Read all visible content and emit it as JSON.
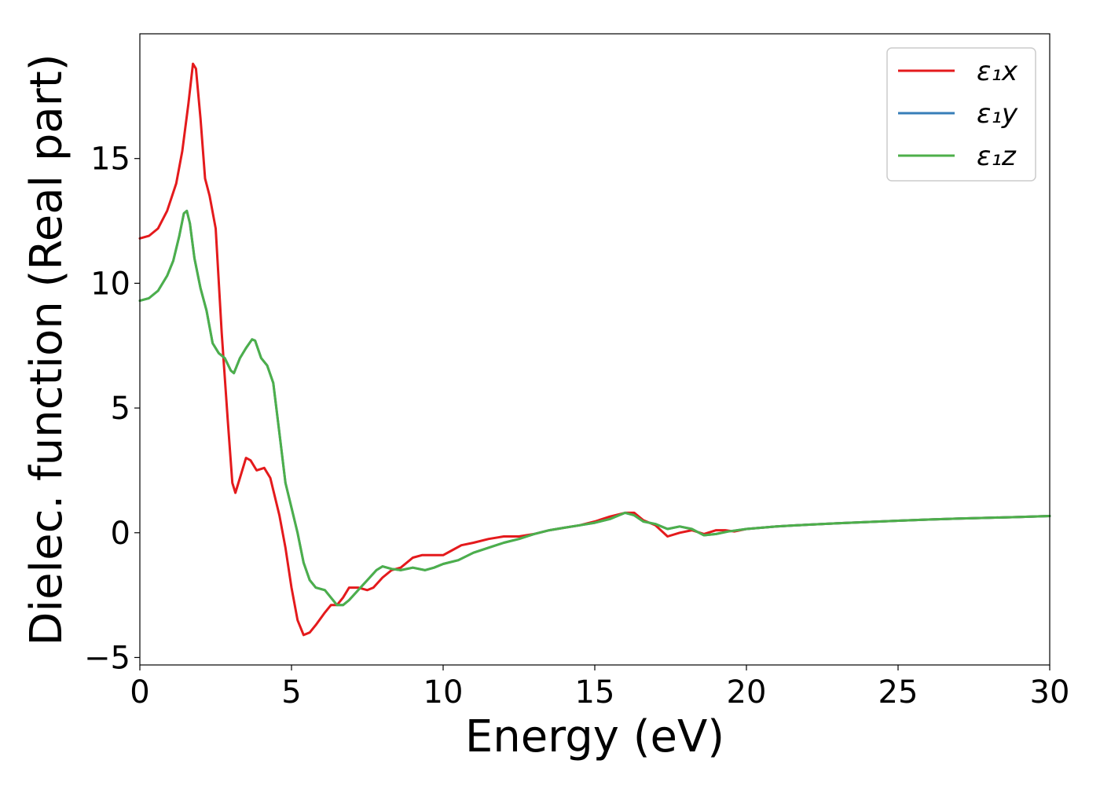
{
  "chart_data": {
    "type": "line",
    "title": "",
    "xlabel": "Energy (eV)",
    "ylabel": "Dielec. function (Real part)",
    "xlim": [
      0,
      30
    ],
    "ylim": [
      -5.3,
      20.0
    ],
    "xticks": [
      0,
      5,
      10,
      15,
      20,
      25,
      30
    ],
    "yticks": [
      -5,
      0,
      5,
      10,
      15
    ],
    "ytick_labels": [
      "−5",
      "0",
      "5",
      "10",
      "15"
    ],
    "grid": false,
    "legend_position": "top-right",
    "series": [
      {
        "name": "ε₁x",
        "color": "#e41a1c",
        "points": [
          [
            0,
            11.8
          ],
          [
            0.3,
            11.9
          ],
          [
            0.6,
            12.2
          ],
          [
            0.9,
            12.9
          ],
          [
            1.2,
            14.0
          ],
          [
            1.4,
            15.3
          ],
          [
            1.6,
            17.2
          ],
          [
            1.75,
            18.8
          ],
          [
            1.85,
            18.6
          ],
          [
            2.0,
            16.6
          ],
          [
            2.15,
            14.2
          ],
          [
            2.3,
            13.5
          ],
          [
            2.5,
            12.2
          ],
          [
            2.7,
            8.0
          ],
          [
            2.9,
            4.5
          ],
          [
            3.05,
            2.0
          ],
          [
            3.15,
            1.6
          ],
          [
            3.3,
            2.2
          ],
          [
            3.5,
            3.0
          ],
          [
            3.65,
            2.9
          ],
          [
            3.85,
            2.5
          ],
          [
            4.1,
            2.6
          ],
          [
            4.3,
            2.2
          ],
          [
            4.6,
            0.7
          ],
          [
            4.8,
            -0.6
          ],
          [
            5.0,
            -2.2
          ],
          [
            5.2,
            -3.5
          ],
          [
            5.4,
            -4.1
          ],
          [
            5.6,
            -4.0
          ],
          [
            5.8,
            -3.7
          ],
          [
            6.1,
            -3.2
          ],
          [
            6.3,
            -2.9
          ],
          [
            6.5,
            -2.9
          ],
          [
            6.7,
            -2.6
          ],
          [
            6.9,
            -2.2
          ],
          [
            7.2,
            -2.2
          ],
          [
            7.5,
            -2.3
          ],
          [
            7.7,
            -2.2
          ],
          [
            8.0,
            -1.8
          ],
          [
            8.3,
            -1.5
          ],
          [
            8.6,
            -1.4
          ],
          [
            9.0,
            -1.0
          ],
          [
            9.3,
            -0.9
          ],
          [
            9.6,
            -0.9
          ],
          [
            10.0,
            -0.9
          ],
          [
            10.3,
            -0.7
          ],
          [
            10.6,
            -0.5
          ],
          [
            11.0,
            -0.4
          ],
          [
            11.5,
            -0.25
          ],
          [
            12.0,
            -0.15
          ],
          [
            12.5,
            -0.15
          ],
          [
            13.0,
            -0.05
          ],
          [
            13.5,
            0.1
          ],
          [
            14.0,
            0.2
          ],
          [
            14.5,
            0.3
          ],
          [
            15.0,
            0.45
          ],
          [
            15.5,
            0.65
          ],
          [
            16.0,
            0.8
          ],
          [
            16.3,
            0.8
          ],
          [
            16.6,
            0.5
          ],
          [
            17.0,
            0.3
          ],
          [
            17.4,
            -0.15
          ],
          [
            17.8,
            0.0
          ],
          [
            18.2,
            0.1
          ],
          [
            18.6,
            -0.05
          ],
          [
            19.0,
            0.1
          ],
          [
            19.3,
            0.1
          ],
          [
            19.6,
            0.05
          ],
          [
            20.0,
            0.15
          ],
          [
            21.0,
            0.25
          ],
          [
            22.0,
            0.32
          ],
          [
            23.0,
            0.38
          ],
          [
            24.0,
            0.43
          ],
          [
            25.0,
            0.48
          ],
          [
            26.0,
            0.53
          ],
          [
            27.0,
            0.57
          ],
          [
            28.0,
            0.6
          ],
          [
            29.0,
            0.63
          ],
          [
            30.0,
            0.67
          ]
        ]
      },
      {
        "name": "ε₁y",
        "color": "#377eb8",
        "points": [
          [
            0,
            9.3
          ],
          [
            0.3,
            9.4
          ],
          [
            0.6,
            9.7
          ],
          [
            0.9,
            10.3
          ],
          [
            1.1,
            10.9
          ],
          [
            1.3,
            11.9
          ],
          [
            1.45,
            12.8
          ],
          [
            1.55,
            12.9
          ],
          [
            1.65,
            12.4
          ],
          [
            1.8,
            11.0
          ],
          [
            2.0,
            9.8
          ],
          [
            2.2,
            8.9
          ],
          [
            2.4,
            7.6
          ],
          [
            2.6,
            7.2
          ],
          [
            2.8,
            7.0
          ],
          [
            3.0,
            6.5
          ],
          [
            3.1,
            6.4
          ],
          [
            3.3,
            7.0
          ],
          [
            3.5,
            7.4
          ],
          [
            3.7,
            7.75
          ],
          [
            3.8,
            7.7
          ],
          [
            4.0,
            7.0
          ],
          [
            4.2,
            6.7
          ],
          [
            4.4,
            6.0
          ],
          [
            4.6,
            4.0
          ],
          [
            4.8,
            2.0
          ],
          [
            5.0,
            1.0
          ],
          [
            5.2,
            0.0
          ],
          [
            5.4,
            -1.2
          ],
          [
            5.6,
            -1.9
          ],
          [
            5.8,
            -2.2
          ],
          [
            6.1,
            -2.3
          ],
          [
            6.3,
            -2.6
          ],
          [
            6.5,
            -2.9
          ],
          [
            6.7,
            -2.9
          ],
          [
            6.9,
            -2.7
          ],
          [
            7.2,
            -2.3
          ],
          [
            7.5,
            -1.9
          ],
          [
            7.8,
            -1.5
          ],
          [
            8.0,
            -1.35
          ],
          [
            8.3,
            -1.45
          ],
          [
            8.6,
            -1.5
          ],
          [
            9.0,
            -1.4
          ],
          [
            9.4,
            -1.5
          ],
          [
            9.7,
            -1.4
          ],
          [
            10.0,
            -1.25
          ],
          [
            10.5,
            -1.1
          ],
          [
            11.0,
            -0.8
          ],
          [
            11.5,
            -0.6
          ],
          [
            12.0,
            -0.4
          ],
          [
            12.5,
            -0.25
          ],
          [
            13.0,
            -0.05
          ],
          [
            13.5,
            0.1
          ],
          [
            14.0,
            0.2
          ],
          [
            14.5,
            0.3
          ],
          [
            15.0,
            0.4
          ],
          [
            15.5,
            0.55
          ],
          [
            16.0,
            0.8
          ],
          [
            16.3,
            0.7
          ],
          [
            16.6,
            0.45
          ],
          [
            17.0,
            0.35
          ],
          [
            17.4,
            0.15
          ],
          [
            17.8,
            0.25
          ],
          [
            18.2,
            0.15
          ],
          [
            18.6,
            -0.1
          ],
          [
            19.0,
            -0.05
          ],
          [
            19.4,
            0.05
          ],
          [
            20.0,
            0.15
          ],
          [
            21.0,
            0.25
          ],
          [
            22.0,
            0.32
          ],
          [
            23.0,
            0.38
          ],
          [
            24.0,
            0.43
          ],
          [
            25.0,
            0.48
          ],
          [
            26.0,
            0.53
          ],
          [
            27.0,
            0.57
          ],
          [
            28.0,
            0.6
          ],
          [
            29.0,
            0.63
          ],
          [
            30.0,
            0.67
          ]
        ]
      },
      {
        "name": "ε₁z",
        "color": "#4daf4a",
        "points": [
          [
            0,
            9.3
          ],
          [
            0.3,
            9.4
          ],
          [
            0.6,
            9.7
          ],
          [
            0.9,
            10.3
          ],
          [
            1.1,
            10.9
          ],
          [
            1.3,
            11.9
          ],
          [
            1.45,
            12.8
          ],
          [
            1.55,
            12.9
          ],
          [
            1.65,
            12.4
          ],
          [
            1.8,
            11.0
          ],
          [
            2.0,
            9.8
          ],
          [
            2.2,
            8.9
          ],
          [
            2.4,
            7.6
          ],
          [
            2.6,
            7.2
          ],
          [
            2.8,
            7.0
          ],
          [
            3.0,
            6.5
          ],
          [
            3.1,
            6.4
          ],
          [
            3.3,
            7.0
          ],
          [
            3.5,
            7.4
          ],
          [
            3.7,
            7.75
          ],
          [
            3.8,
            7.7
          ],
          [
            4.0,
            7.0
          ],
          [
            4.2,
            6.7
          ],
          [
            4.4,
            6.0
          ],
          [
            4.6,
            4.0
          ],
          [
            4.8,
            2.0
          ],
          [
            5.0,
            1.0
          ],
          [
            5.2,
            0.0
          ],
          [
            5.4,
            -1.2
          ],
          [
            5.6,
            -1.9
          ],
          [
            5.8,
            -2.2
          ],
          [
            6.1,
            -2.3
          ],
          [
            6.3,
            -2.6
          ],
          [
            6.5,
            -2.9
          ],
          [
            6.7,
            -2.9
          ],
          [
            6.9,
            -2.7
          ],
          [
            7.2,
            -2.3
          ],
          [
            7.5,
            -1.9
          ],
          [
            7.8,
            -1.5
          ],
          [
            8.0,
            -1.35
          ],
          [
            8.3,
            -1.45
          ],
          [
            8.6,
            -1.5
          ],
          [
            9.0,
            -1.4
          ],
          [
            9.4,
            -1.5
          ],
          [
            9.7,
            -1.4
          ],
          [
            10.0,
            -1.25
          ],
          [
            10.5,
            -1.1
          ],
          [
            11.0,
            -0.8
          ],
          [
            11.5,
            -0.6
          ],
          [
            12.0,
            -0.4
          ],
          [
            12.5,
            -0.25
          ],
          [
            13.0,
            -0.05
          ],
          [
            13.5,
            0.1
          ],
          [
            14.0,
            0.2
          ],
          [
            14.5,
            0.3
          ],
          [
            15.0,
            0.4
          ],
          [
            15.5,
            0.55
          ],
          [
            16.0,
            0.8
          ],
          [
            16.3,
            0.7
          ],
          [
            16.6,
            0.45
          ],
          [
            17.0,
            0.35
          ],
          [
            17.4,
            0.15
          ],
          [
            17.8,
            0.25
          ],
          [
            18.2,
            0.15
          ],
          [
            18.6,
            -0.1
          ],
          [
            19.0,
            -0.05
          ],
          [
            19.4,
            0.05
          ],
          [
            20.0,
            0.15
          ],
          [
            21.0,
            0.25
          ],
          [
            22.0,
            0.32
          ],
          [
            23.0,
            0.38
          ],
          [
            24.0,
            0.43
          ],
          [
            25.0,
            0.48
          ],
          [
            26.0,
            0.53
          ],
          [
            27.0,
            0.57
          ],
          [
            28.0,
            0.6
          ],
          [
            29.0,
            0.63
          ],
          [
            30.0,
            0.67
          ]
        ]
      }
    ]
  }
}
